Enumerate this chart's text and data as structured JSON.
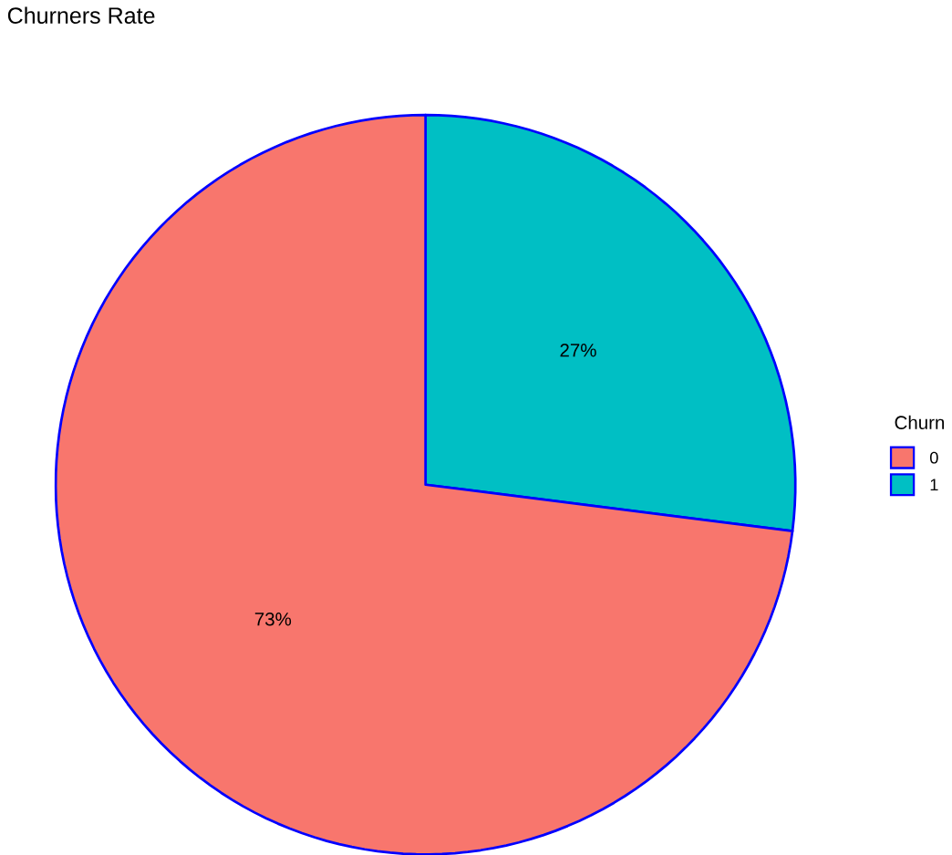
{
  "chart_data": {
    "type": "pie",
    "title": "Churners Rate",
    "legend_title": "Churn",
    "categories": [
      "0",
      "1"
    ],
    "values": [
      73,
      27
    ],
    "colors": [
      "#f8766d",
      "#00bfc4"
    ],
    "value_labels": [
      "73%",
      "27%"
    ],
    "legend": "right"
  }
}
